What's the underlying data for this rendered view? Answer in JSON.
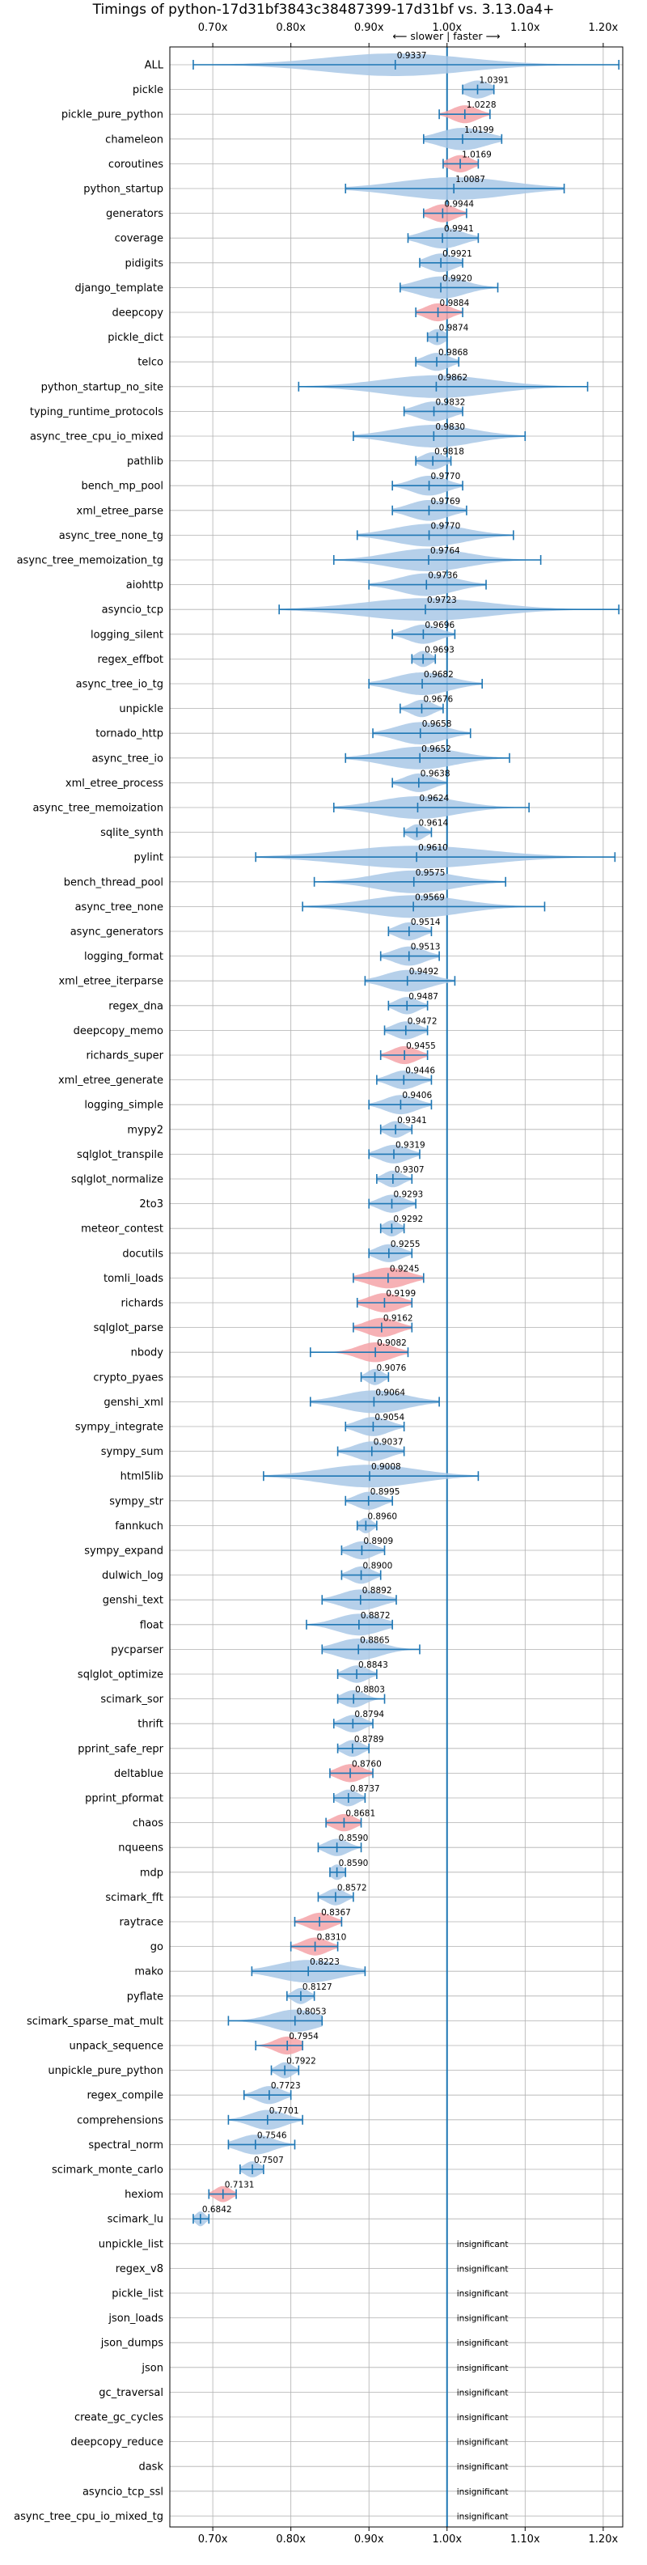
{
  "chart_data": {
    "type": "violin",
    "title": "Timings of python-17d31bf3843c38487399-17d31bf vs. 3.13.0a4+",
    "direction_label": "⟵ slower  |  faster ⟶",
    "x_ticks": [
      {
        "value": 0.7,
        "label": "0.70x"
      },
      {
        "value": 0.8,
        "label": "0.80x"
      },
      {
        "value": 0.9,
        "label": "0.90x"
      },
      {
        "value": 1.0,
        "label": "1.00x"
      },
      {
        "value": 1.1,
        "label": "1.10x"
      },
      {
        "value": 1.2,
        "label": "1.20x"
      }
    ],
    "xlim": [
      0.645,
      1.225
    ],
    "grid": true,
    "reference_line": 1.0,
    "colors": {
      "normal": "#a9c8e6",
      "slower": "#f4a3a8",
      "line": "#1f77b4",
      "grid": "#b0b0b0"
    },
    "insignificant_text": "insignificant",
    "benchmarks": [
      {
        "name": "ALL",
        "value": 0.9337,
        "label": "0.9337",
        "min": 0.675,
        "max": 1.22,
        "spread": 0.09,
        "highlight": false
      },
      {
        "name": "pickle",
        "value": 1.0391,
        "label": "1.0391",
        "min": 1.02,
        "max": 1.06,
        "spread": 0.016,
        "highlight": false
      },
      {
        "name": "pickle_pure_python",
        "value": 1.0228,
        "label": "1.0228",
        "min": 0.99,
        "max": 1.055,
        "spread": 0.016,
        "highlight": true
      },
      {
        "name": "chameleon",
        "value": 1.0199,
        "label": "1.0199",
        "min": 0.97,
        "max": 1.07,
        "spread": 0.03,
        "highlight": false
      },
      {
        "name": "coroutines",
        "value": 1.0169,
        "label": "1.0169",
        "min": 0.995,
        "max": 1.04,
        "spread": 0.014,
        "highlight": true
      },
      {
        "name": "python_startup",
        "value": 1.0087,
        "label": "1.0087",
        "min": 0.87,
        "max": 1.15,
        "spread": 0.07,
        "highlight": false
      },
      {
        "name": "generators",
        "value": 0.9944,
        "label": "0.9944",
        "min": 0.97,
        "max": 1.025,
        "spread": 0.016,
        "highlight": true
      },
      {
        "name": "coverage",
        "value": 0.9941,
        "label": "0.9941",
        "min": 0.95,
        "max": 1.04,
        "spread": 0.025,
        "highlight": false
      },
      {
        "name": "pidigits",
        "value": 0.9921,
        "label": "0.9921",
        "min": 0.965,
        "max": 1.02,
        "spread": 0.018,
        "highlight": false
      },
      {
        "name": "django_template",
        "value": 0.992,
        "label": "0.9920",
        "min": 0.94,
        "max": 1.065,
        "spread": 0.03,
        "highlight": false
      },
      {
        "name": "deepcopy",
        "value": 0.9884,
        "label": "0.9884",
        "min": 0.96,
        "max": 1.02,
        "spread": 0.016,
        "highlight": true
      },
      {
        "name": "pickle_dict",
        "value": 0.9874,
        "label": "0.9874",
        "min": 0.975,
        "max": 1.0,
        "spread": 0.01,
        "highlight": false
      },
      {
        "name": "telco",
        "value": 0.9868,
        "label": "0.9868",
        "min": 0.96,
        "max": 1.015,
        "spread": 0.016,
        "highlight": false
      },
      {
        "name": "python_startup_no_site",
        "value": 0.9862,
        "label": "0.9862",
        "min": 0.81,
        "max": 1.18,
        "spread": 0.07,
        "highlight": false
      },
      {
        "name": "typing_runtime_protocols",
        "value": 0.9832,
        "label": "0.9832",
        "min": 0.945,
        "max": 1.02,
        "spread": 0.022,
        "highlight": false
      },
      {
        "name": "async_tree_cpu_io_mixed",
        "value": 0.983,
        "label": "0.9830",
        "min": 0.88,
        "max": 1.1,
        "spread": 0.05,
        "highlight": false
      },
      {
        "name": "pathlib",
        "value": 0.9818,
        "label": "0.9818",
        "min": 0.96,
        "max": 1.005,
        "spread": 0.014,
        "highlight": false
      },
      {
        "name": "bench_mp_pool",
        "value": 0.977,
        "label": "0.9770",
        "min": 0.93,
        "max": 1.02,
        "spread": 0.022,
        "highlight": false
      },
      {
        "name": "xml_etree_parse",
        "value": 0.9769,
        "label": "0.9769",
        "min": 0.93,
        "max": 1.025,
        "spread": 0.025,
        "highlight": false
      },
      {
        "name": "async_tree_none_tg",
        "value": 0.977,
        "label": "0.9770",
        "min": 0.885,
        "max": 1.085,
        "spread": 0.045,
        "highlight": false
      },
      {
        "name": "async_tree_memoization_tg",
        "value": 0.9764,
        "label": "0.9764",
        "min": 0.855,
        "max": 1.12,
        "spread": 0.05,
        "highlight": false
      },
      {
        "name": "aiohttp",
        "value": 0.9736,
        "label": "0.9736",
        "min": 0.9,
        "max": 1.05,
        "spread": 0.035,
        "highlight": false
      },
      {
        "name": "asyncio_tcp",
        "value": 0.9723,
        "label": "0.9723",
        "min": 0.785,
        "max": 1.22,
        "spread": 0.08,
        "highlight": false
      },
      {
        "name": "logging_silent",
        "value": 0.9696,
        "label": "0.9696",
        "min": 0.93,
        "max": 1.01,
        "spread": 0.02,
        "highlight": false
      },
      {
        "name": "regex_effbot",
        "value": 0.9693,
        "label": "0.9693",
        "min": 0.955,
        "max": 0.985,
        "spread": 0.01,
        "highlight": false
      },
      {
        "name": "async_tree_io_tg",
        "value": 0.9682,
        "label": "0.9682",
        "min": 0.9,
        "max": 1.045,
        "spread": 0.035,
        "highlight": false
      },
      {
        "name": "unpickle",
        "value": 0.9676,
        "label": "0.9676",
        "min": 0.94,
        "max": 0.995,
        "spread": 0.014,
        "highlight": false
      },
      {
        "name": "tornado_http",
        "value": 0.9658,
        "label": "0.9658",
        "min": 0.905,
        "max": 1.03,
        "spread": 0.03,
        "highlight": false
      },
      {
        "name": "async_tree_io",
        "value": 0.9652,
        "label": "0.9652",
        "min": 0.87,
        "max": 1.08,
        "spread": 0.045,
        "highlight": false
      },
      {
        "name": "xml_etree_process",
        "value": 0.9638,
        "label": "0.9638",
        "min": 0.93,
        "max": 1.0,
        "spread": 0.018,
        "highlight": false
      },
      {
        "name": "async_tree_memoization",
        "value": 0.9624,
        "label": "0.9624",
        "min": 0.855,
        "max": 1.105,
        "spread": 0.05,
        "highlight": false
      },
      {
        "name": "sqlite_synth",
        "value": 0.9614,
        "label": "0.9614",
        "min": 0.945,
        "max": 0.98,
        "spread": 0.01,
        "highlight": false
      },
      {
        "name": "pylint",
        "value": 0.961,
        "label": "0.9610",
        "min": 0.755,
        "max": 1.215,
        "spread": 0.09,
        "highlight": false
      },
      {
        "name": "bench_thread_pool",
        "value": 0.9575,
        "label": "0.9575",
        "min": 0.83,
        "max": 1.075,
        "spread": 0.05,
        "highlight": false
      },
      {
        "name": "async_tree_none",
        "value": 0.9569,
        "label": "0.9569",
        "min": 0.815,
        "max": 1.125,
        "spread": 0.06,
        "highlight": false
      },
      {
        "name": "async_generators",
        "value": 0.9514,
        "label": "0.9514",
        "min": 0.925,
        "max": 0.98,
        "spread": 0.016,
        "highlight": false
      },
      {
        "name": "logging_format",
        "value": 0.9513,
        "label": "0.9513",
        "min": 0.915,
        "max": 0.99,
        "spread": 0.02,
        "highlight": false
      },
      {
        "name": "xml_etree_iterparse",
        "value": 0.9492,
        "label": "0.9492",
        "min": 0.895,
        "max": 1.01,
        "spread": 0.028,
        "highlight": false
      },
      {
        "name": "regex_dna",
        "value": 0.9487,
        "label": "0.9487",
        "min": 0.925,
        "max": 0.975,
        "spread": 0.014,
        "highlight": false
      },
      {
        "name": "deepcopy_memo",
        "value": 0.9472,
        "label": "0.9472",
        "min": 0.92,
        "max": 0.975,
        "spread": 0.016,
        "highlight": false
      },
      {
        "name": "richards_super",
        "value": 0.9455,
        "label": "0.9455",
        "min": 0.915,
        "max": 0.975,
        "spread": 0.016,
        "highlight": true
      },
      {
        "name": "xml_etree_generate",
        "value": 0.9446,
        "label": "0.9446",
        "min": 0.91,
        "max": 0.98,
        "spread": 0.018,
        "highlight": false
      },
      {
        "name": "logging_simple",
        "value": 0.9406,
        "label": "0.9406",
        "min": 0.9,
        "max": 0.98,
        "spread": 0.02,
        "highlight": false
      },
      {
        "name": "mypy2",
        "value": 0.9341,
        "label": "0.9341",
        "min": 0.915,
        "max": 0.955,
        "spread": 0.012,
        "highlight": false
      },
      {
        "name": "sqlglot_transpile",
        "value": 0.9319,
        "label": "0.9319",
        "min": 0.9,
        "max": 0.965,
        "spread": 0.018,
        "highlight": false
      },
      {
        "name": "sqlglot_normalize",
        "value": 0.9307,
        "label": "0.9307",
        "min": 0.91,
        "max": 0.955,
        "spread": 0.012,
        "highlight": false
      },
      {
        "name": "2to3",
        "value": 0.9293,
        "label": "0.9293",
        "min": 0.9,
        "max": 0.96,
        "spread": 0.016,
        "highlight": false
      },
      {
        "name": "meteor_contest",
        "value": 0.9292,
        "label": "0.9292",
        "min": 0.915,
        "max": 0.945,
        "spread": 0.01,
        "highlight": false
      },
      {
        "name": "docutils",
        "value": 0.9255,
        "label": "0.9255",
        "min": 0.9,
        "max": 0.955,
        "spread": 0.016,
        "highlight": false
      },
      {
        "name": "tomli_loads",
        "value": 0.9245,
        "label": "0.9245",
        "min": 0.88,
        "max": 0.97,
        "spread": 0.025,
        "highlight": true
      },
      {
        "name": "richards",
        "value": 0.9199,
        "label": "0.9199",
        "min": 0.885,
        "max": 0.955,
        "spread": 0.02,
        "highlight": true
      },
      {
        "name": "sqlglot_parse",
        "value": 0.9162,
        "label": "0.9162",
        "min": 0.88,
        "max": 0.955,
        "spread": 0.02,
        "highlight": true
      },
      {
        "name": "nbody",
        "value": 0.9082,
        "label": "0.9082",
        "min": 0.825,
        "max": 0.95,
        "spread": 0.022,
        "highlight": true
      },
      {
        "name": "crypto_pyaes",
        "value": 0.9076,
        "label": "0.9076",
        "min": 0.89,
        "max": 0.925,
        "spread": 0.01,
        "highlight": false
      },
      {
        "name": "genshi_xml",
        "value": 0.9064,
        "label": "0.9064",
        "min": 0.825,
        "max": 0.99,
        "spread": 0.04,
        "highlight": false
      },
      {
        "name": "sympy_integrate",
        "value": 0.9054,
        "label": "0.9054",
        "min": 0.87,
        "max": 0.945,
        "spread": 0.02,
        "highlight": false
      },
      {
        "name": "sympy_sum",
        "value": 0.9037,
        "label": "0.9037",
        "min": 0.86,
        "max": 0.945,
        "spread": 0.022,
        "highlight": false
      },
      {
        "name": "html5lib",
        "value": 0.9008,
        "label": "0.9008",
        "min": 0.765,
        "max": 1.04,
        "spread": 0.06,
        "highlight": false
      },
      {
        "name": "sympy_str",
        "value": 0.8995,
        "label": "0.8995",
        "min": 0.87,
        "max": 0.93,
        "spread": 0.016,
        "highlight": false
      },
      {
        "name": "fannkuch",
        "value": 0.896,
        "label": "0.8960",
        "min": 0.885,
        "max": 0.91,
        "spread": 0.008,
        "highlight": false
      },
      {
        "name": "sympy_expand",
        "value": 0.8909,
        "label": "0.8909",
        "min": 0.865,
        "max": 0.92,
        "spread": 0.016,
        "highlight": false
      },
      {
        "name": "dulwich_log",
        "value": 0.89,
        "label": "0.8900",
        "min": 0.865,
        "max": 0.915,
        "spread": 0.014,
        "highlight": false
      },
      {
        "name": "genshi_text",
        "value": 0.8892,
        "label": "0.8892",
        "min": 0.84,
        "max": 0.935,
        "spread": 0.025,
        "highlight": false
      },
      {
        "name": "float",
        "value": 0.8872,
        "label": "0.8872",
        "min": 0.82,
        "max": 0.93,
        "spread": 0.028,
        "highlight": false
      },
      {
        "name": "pycparser",
        "value": 0.8865,
        "label": "0.8865",
        "min": 0.84,
        "max": 0.965,
        "spread": 0.028,
        "highlight": false
      },
      {
        "name": "sqlglot_optimize",
        "value": 0.8843,
        "label": "0.8843",
        "min": 0.86,
        "max": 0.91,
        "spread": 0.014,
        "highlight": false
      },
      {
        "name": "scimark_sor",
        "value": 0.8803,
        "label": "0.8803",
        "min": 0.86,
        "max": 0.92,
        "spread": 0.014,
        "highlight": false
      },
      {
        "name": "thrift",
        "value": 0.8794,
        "label": "0.8794",
        "min": 0.855,
        "max": 0.905,
        "spread": 0.014,
        "highlight": false
      },
      {
        "name": "pprint_safe_repr",
        "value": 0.8789,
        "label": "0.8789",
        "min": 0.86,
        "max": 0.9,
        "spread": 0.012,
        "highlight": false
      },
      {
        "name": "deltablue",
        "value": 0.876,
        "label": "0.8760",
        "min": 0.85,
        "max": 0.905,
        "spread": 0.016,
        "highlight": true
      },
      {
        "name": "pprint_pformat",
        "value": 0.8737,
        "label": "0.8737",
        "min": 0.855,
        "max": 0.895,
        "spread": 0.012,
        "highlight": false
      },
      {
        "name": "chaos",
        "value": 0.8681,
        "label": "0.8681",
        "min": 0.845,
        "max": 0.89,
        "spread": 0.014,
        "highlight": true
      },
      {
        "name": "nqueens",
        "value": 0.859,
        "label": "0.8590",
        "min": 0.835,
        "max": 0.89,
        "spread": 0.014,
        "highlight": false
      },
      {
        "name": "mdp",
        "value": 0.859,
        "label": "0.8590",
        "min": 0.85,
        "max": 0.87,
        "spread": 0.008,
        "highlight": false
      },
      {
        "name": "scimark_fft",
        "value": 0.8572,
        "label": "0.8572",
        "min": 0.835,
        "max": 0.88,
        "spread": 0.012,
        "highlight": false
      },
      {
        "name": "raytrace",
        "value": 0.8367,
        "label": "0.8367",
        "min": 0.805,
        "max": 0.865,
        "spread": 0.016,
        "highlight": true
      },
      {
        "name": "go",
        "value": 0.831,
        "label": "0.8310",
        "min": 0.8,
        "max": 0.86,
        "spread": 0.016,
        "highlight": true
      },
      {
        "name": "mako",
        "value": 0.8223,
        "label": "0.8223",
        "min": 0.75,
        "max": 0.895,
        "spread": 0.04,
        "highlight": false
      },
      {
        "name": "pyflate",
        "value": 0.8127,
        "label": "0.8127",
        "min": 0.795,
        "max": 0.83,
        "spread": 0.01,
        "highlight": false
      },
      {
        "name": "scimark_sparse_mat_mult",
        "value": 0.8053,
        "label": "0.8053",
        "min": 0.72,
        "max": 0.84,
        "spread": 0.03,
        "highlight": false
      },
      {
        "name": "unpack_sequence",
        "value": 0.7954,
        "label": "0.7954",
        "min": 0.755,
        "max": 0.815,
        "spread": 0.016,
        "highlight": true
      },
      {
        "name": "unpickle_pure_python",
        "value": 0.7922,
        "label": "0.7922",
        "min": 0.775,
        "max": 0.81,
        "spread": 0.01,
        "highlight": false
      },
      {
        "name": "regex_compile",
        "value": 0.7723,
        "label": "0.7723",
        "min": 0.74,
        "max": 0.8,
        "spread": 0.016,
        "highlight": false
      },
      {
        "name": "comprehensions",
        "value": 0.7701,
        "label": "0.7701",
        "min": 0.72,
        "max": 0.815,
        "spread": 0.022,
        "highlight": false
      },
      {
        "name": "spectral_norm",
        "value": 0.7546,
        "label": "0.7546",
        "min": 0.72,
        "max": 0.805,
        "spread": 0.022,
        "highlight": false
      },
      {
        "name": "scimark_monte_carlo",
        "value": 0.7507,
        "label": "0.7507",
        "min": 0.735,
        "max": 0.765,
        "spread": 0.01,
        "highlight": false
      },
      {
        "name": "hexiom",
        "value": 0.7131,
        "label": "0.7131",
        "min": 0.695,
        "max": 0.73,
        "spread": 0.01,
        "highlight": true
      },
      {
        "name": "scimark_lu",
        "value": 0.6842,
        "label": "0.6842",
        "min": 0.675,
        "max": 0.695,
        "spread": 0.006,
        "highlight": false
      },
      {
        "name": "unpickle_list",
        "insignificant": true
      },
      {
        "name": "regex_v8",
        "insignificant": true
      },
      {
        "name": "pickle_list",
        "insignificant": true
      },
      {
        "name": "json_loads",
        "insignificant": true
      },
      {
        "name": "json_dumps",
        "insignificant": true
      },
      {
        "name": "json",
        "insignificant": true
      },
      {
        "name": "gc_traversal",
        "insignificant": true
      },
      {
        "name": "create_gc_cycles",
        "insignificant": true
      },
      {
        "name": "deepcopy_reduce",
        "insignificant": true
      },
      {
        "name": "dask",
        "insignificant": true
      },
      {
        "name": "asyncio_tcp_ssl",
        "insignificant": true
      },
      {
        "name": "async_tree_cpu_io_mixed_tg",
        "insignificant": true
      }
    ]
  }
}
